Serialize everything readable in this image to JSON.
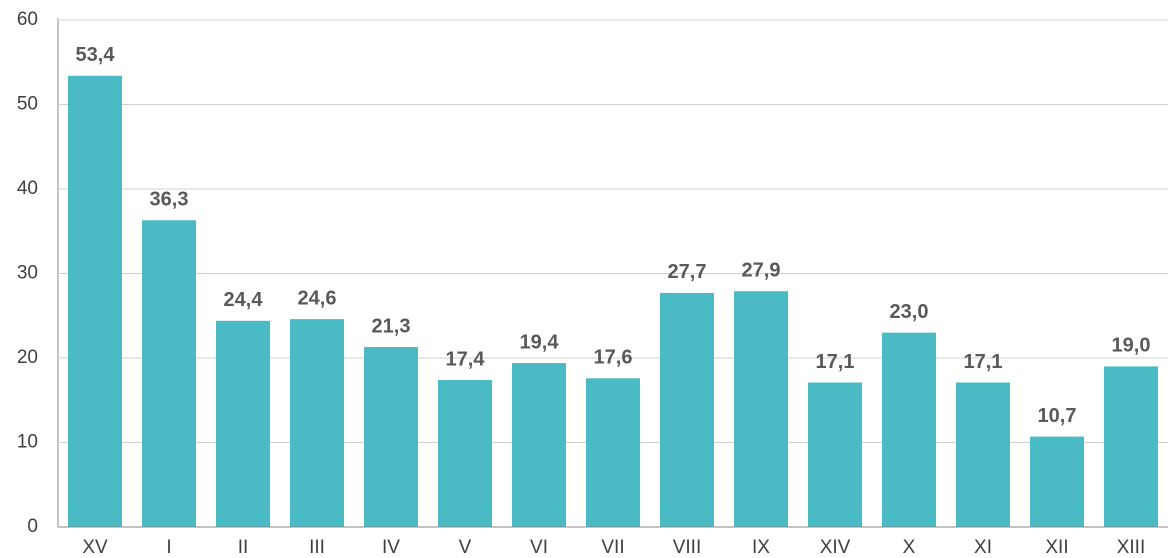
{
  "chart_data": {
    "type": "bar",
    "categories": [
      "XV",
      "I",
      "II",
      "III",
      "IV",
      "V",
      "VI",
      "VII",
      "VIII",
      "IX",
      "XIV",
      "X",
      "XI",
      "XII",
      "XIII"
    ],
    "values": [
      53.4,
      36.3,
      24.4,
      24.6,
      21.3,
      17.4,
      19.4,
      17.6,
      27.7,
      27.9,
      17.1,
      23.0,
      17.1,
      10.7,
      19.0
    ],
    "value_labels": [
      "53,4",
      "36,3",
      "24,4",
      "24,6",
      "21,3",
      "17,4",
      "19,4",
      "17,6",
      "27,7",
      "27,9",
      "17,1",
      "23,0",
      "17,1",
      "10,7",
      "19,0"
    ],
    "color": "#4abbc4",
    "ylim": [
      0,
      60
    ],
    "yticks": [
      0,
      10,
      20,
      30,
      40,
      50,
      60
    ],
    "grid": true
  }
}
